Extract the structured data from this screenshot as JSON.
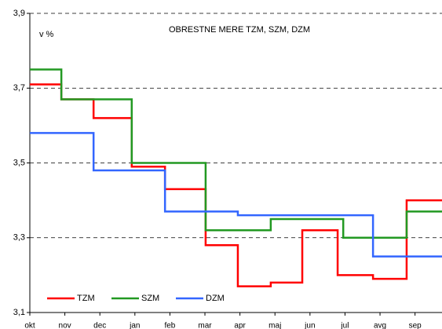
{
  "chart_data": {
    "type": "step",
    "title": "OBRESTNE MERE TZM, SZM, DZM",
    "annotations": [
      "v %"
    ],
    "categories": [
      "okt",
      "nov",
      "dec",
      "jan",
      "feb",
      "mar",
      "apr",
      "maj",
      "jun",
      "jul",
      "avg",
      "sep"
    ],
    "xlim": [
      0,
      11.77
    ],
    "ylim": [
      3.1,
      3.9
    ],
    "yticks": [
      {
        "value": 3.1,
        "label": "3,1"
      },
      {
        "value": 3.3,
        "label": "3,3"
      },
      {
        "value": 3.5,
        "label": "3,5"
      },
      {
        "value": 3.7,
        "label": "3,7"
      },
      {
        "value": 3.9,
        "label": "3,9"
      }
    ],
    "grid": true,
    "legend": "lower left",
    "series": [
      {
        "name": "TZM",
        "color": "#ff0000",
        "x": [
          0,
          0.9,
          1.82,
          2.91,
          3.86,
          5.02,
          5.94,
          6.88,
          7.78,
          8.79,
          9.8,
          10.76
        ],
        "values": [
          3.71,
          3.67,
          3.62,
          3.49,
          3.43,
          3.28,
          3.17,
          3.18,
          3.32,
          3.2,
          3.19,
          3.4
        ]
      },
      {
        "name": "SZM",
        "color": "#229922",
        "x": [
          0,
          0.9,
          2.91,
          5.02,
          6.88,
          8.95,
          10.76
        ],
        "values": [
          3.75,
          3.67,
          3.5,
          3.32,
          3.35,
          3.3,
          3.37
        ]
      },
      {
        "name": "DZM",
        "color": "#3366ff",
        "x": [
          0,
          1.82,
          3.86,
          5.94,
          9.8
        ],
        "values": [
          3.58,
          3.48,
          3.37,
          3.36,
          3.25
        ]
      }
    ]
  }
}
